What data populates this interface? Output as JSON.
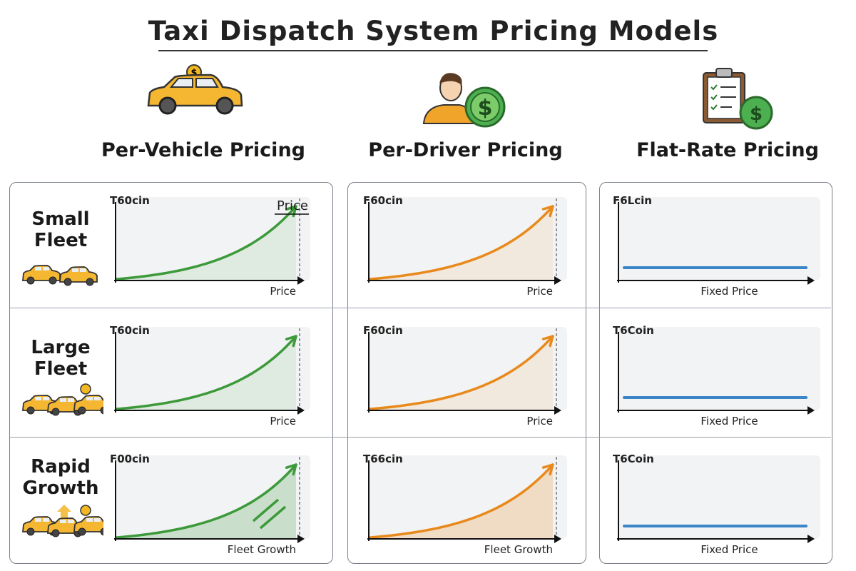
{
  "title": "Taxi Dispatch System Pricing Models",
  "columns": [
    {
      "label": "Per-Vehicle Pricing",
      "icon": "taxi-coin-icon",
      "color": "#3c9a3a"
    },
    {
      "label": "Per-Driver Pricing",
      "icon": "driver-dollar-icon",
      "color": "#e8891c"
    },
    {
      "label": "Flat-Rate Pricing",
      "icon": "clipboard-dollar-icon",
      "color": "#3b86c6"
    }
  ],
  "rows": [
    {
      "label_line1": "Small",
      "label_line2": "Fleet",
      "icon": "small-fleet-cars-icon"
    },
    {
      "label_line1": "Large",
      "label_line2": "Fleet",
      "icon": "large-fleet-cars-icon"
    },
    {
      "label_line1": "Rapid",
      "label_line2": "Growth",
      "icon": "rapid-growth-cars-icon"
    }
  ],
  "cells": [
    [
      {
        "ylabel": "T60cin",
        "xlabel": "Price",
        "annotation": "Price",
        "trend": "exponential"
      },
      {
        "ylabel": "F60cin",
        "xlabel": "Price",
        "trend": "exponential"
      },
      {
        "ylabel": "F6Lcin",
        "xlabel": "Fixed Price",
        "trend": "flat"
      }
    ],
    [
      {
        "ylabel": "T60cin",
        "xlabel": "Price",
        "trend": "exponential"
      },
      {
        "ylabel": "F60cin",
        "xlabel": "Price",
        "trend": "exponential"
      },
      {
        "ylabel": "T6Coin",
        "xlabel": "Fixed Price",
        "trend": "flat"
      }
    ],
    [
      {
        "ylabel": "F00cin",
        "xlabel": "Fleet Growth",
        "trend": "exponential"
      },
      {
        "ylabel": "T66cin",
        "xlabel": "Fleet Growth",
        "trend": "exponential"
      },
      {
        "ylabel": "T6Coin",
        "xlabel": "Fixed Price",
        "trend": "flat"
      }
    ]
  ]
}
